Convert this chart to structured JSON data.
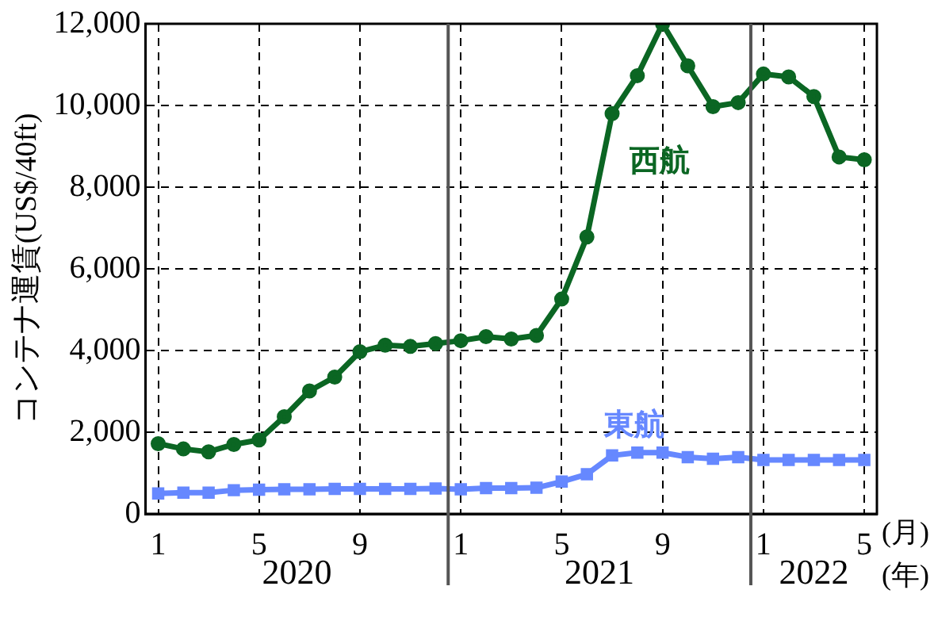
{
  "chart_data": {
    "type": "line",
    "ylabel": "コンテナ運賃(US$/40ft)",
    "categories": [
      "1",
      null,
      null,
      null,
      "5",
      null,
      null,
      null,
      "9",
      null,
      null,
      null,
      "1",
      null,
      null,
      null,
      "5",
      null,
      null,
      null,
      "9",
      null,
      null,
      null,
      "1",
      null,
      null,
      null,
      "5"
    ],
    "series": [
      {
        "name": "西航",
        "color": "#0b6623",
        "marker": "circle",
        "values": [
          1720,
          1590,
          1520,
          1700,
          1810,
          2380,
          3010,
          3350,
          3970,
          4130,
          4100,
          4170,
          4240,
          4340,
          4280,
          4370,
          5260,
          6780,
          9800,
          10730,
          12000,
          10970,
          9970,
          10070,
          10770,
          10700,
          10220,
          8740,
          8670
        ]
      },
      {
        "name": "東航",
        "color": "#6688ff",
        "marker": "square",
        "values": [
          500,
          520,
          520,
          580,
          590,
          600,
          600,
          610,
          610,
          610,
          610,
          620,
          600,
          630,
          630,
          640,
          790,
          970,
          1430,
          1500,
          1500,
          1390,
          1350,
          1390,
          1320,
          1320,
          1320,
          1320,
          1320
        ]
      }
    ],
    "ylim": [
      0,
      12000
    ],
    "yticks": [
      0,
      {
        "value": 2000,
        "label": "2,000"
      },
      {
        "value": 4000,
        "label": "4,000"
      },
      {
        "value": 6000,
        "label": "6,000"
      },
      {
        "value": 8000,
        "label": "8,000"
      },
      {
        "value": 10000,
        "label": "10,000"
      },
      {
        "value": 12000,
        "label": "12,000"
      }
    ],
    "grid": true,
    "legend": false,
    "annotations": [
      "2020",
      "2021",
      "2022",
      "(月)",
      "(年)"
    ]
  }
}
